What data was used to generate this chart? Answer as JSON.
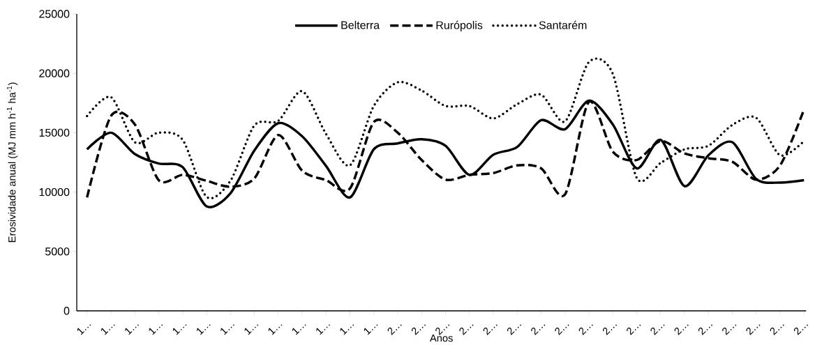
{
  "chart_data": {
    "type": "line",
    "xlabel": "Anos",
    "ylabel": "Erosividade anual (MJ mm h$^{-1}$ ha$^{-1}$)",
    "categories": [
      "1…",
      "1…",
      "1…",
      "1…",
      "1…",
      "1…",
      "1…",
      "1…",
      "1…",
      "1…",
      "1…",
      "1…",
      "1…",
      "2…",
      "2…",
      "2…",
      "2…",
      "2…",
      "2…",
      "2…",
      "2…",
      "2…",
      "2…",
      "2…",
      "2…",
      "2…",
      "2…",
      "2…",
      "2…",
      "2…",
      "2…"
    ],
    "series": [
      {
        "name": "Belterra",
        "color": "#000000",
        "line_style": "solid",
        "values": [
          13600,
          15000,
          13200,
          12400,
          12100,
          8800,
          9900,
          13500,
          15800,
          14700,
          12200,
          9550,
          13600,
          14100,
          14450,
          13900,
          11450,
          13150,
          13800,
          16050,
          15300,
          17700,
          15700,
          12000,
          14400,
          10500,
          13100,
          14200,
          11100,
          10800,
          11000
        ]
      },
      {
        "name": "Rurópolis",
        "color": "#000000",
        "line_style": "dashed",
        "values": [
          9550,
          16400,
          15700,
          11000,
          11450,
          10950,
          10450,
          11150,
          14800,
          11800,
          11000,
          10300,
          15900,
          15000,
          12700,
          11050,
          11450,
          11600,
          12250,
          12000,
          9800,
          17600,
          13400,
          12700,
          14300,
          13250,
          12850,
          12550,
          11050,
          12250,
          16950
        ]
      },
      {
        "name": "Santarém",
        "color": "#000000",
        "line_style": "dotted",
        "values": [
          16400,
          18000,
          14200,
          15000,
          14400,
          9600,
          10950,
          15600,
          16000,
          18500,
          14900,
          12250,
          17250,
          19250,
          18550,
          17250,
          17250,
          16200,
          17400,
          18200,
          15950,
          20950,
          19950,
          11200,
          12450,
          13600,
          13900,
          15650,
          16250,
          13100,
          14300
        ]
      }
    ],
    "ylim": [
      0,
      25000
    ],
    "yticks": [
      0,
      5000,
      10000,
      15000,
      20000,
      25000
    ],
    "grid": false,
    "legend": "top",
    "marker": "none"
  }
}
